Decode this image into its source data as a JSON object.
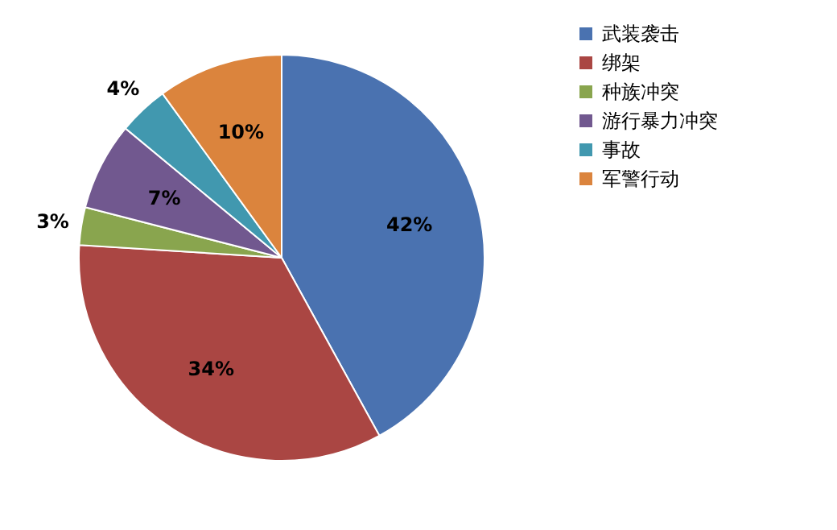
{
  "chart_data": {
    "type": "pie",
    "categories": [
      "武装袭击",
      "绑架",
      "种族冲突",
      "游行暴力冲突",
      "事故",
      "军警行动"
    ],
    "values": [
      42,
      34,
      3,
      7,
      4,
      10
    ],
    "colors": [
      "#4a72b0",
      "#aa4643",
      "#89a54e",
      "#71588f",
      "#4198af",
      "#db843d"
    ],
    "value_labels": [
      "42%",
      "34%",
      "3%",
      "7%",
      "4%",
      "10%"
    ],
    "legend": "right"
  }
}
